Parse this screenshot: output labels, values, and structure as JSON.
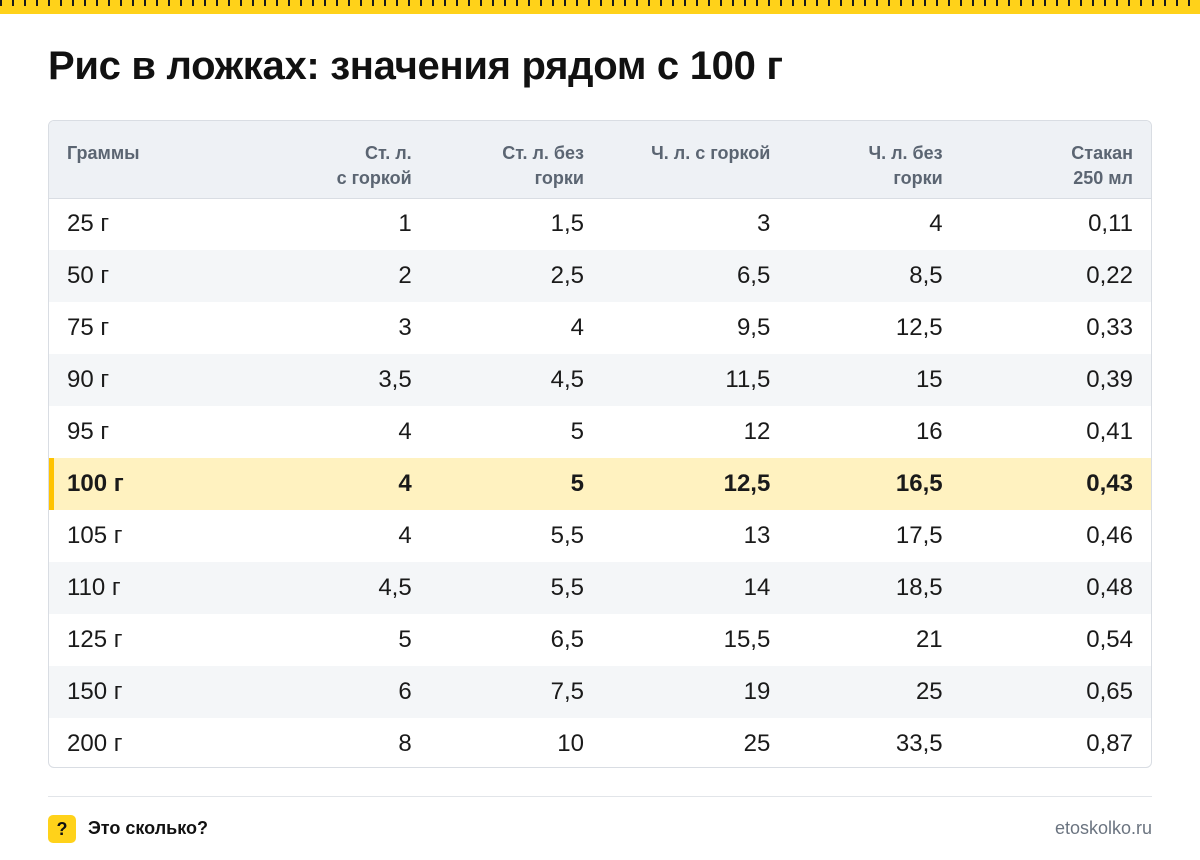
{
  "title": "Рис в ложках: значения рядом с 100 г",
  "table": {
    "headers": [
      {
        "line1": "Граммы",
        "line2": ""
      },
      {
        "line1": "Ст. л.",
        "line2": "с горкой"
      },
      {
        "line1": "Ст. л. без",
        "line2": "горки"
      },
      {
        "line1": "Ч. л. с горкой",
        "line2": ""
      },
      {
        "line1": "Ч. л. без",
        "line2": "горки"
      },
      {
        "line1": "Стакан",
        "line2": "250 мл"
      }
    ],
    "rows": [
      [
        "25 г",
        "1",
        "1,5",
        "3",
        "4",
        "0,11"
      ],
      [
        "50 г",
        "2",
        "2,5",
        "6,5",
        "8,5",
        "0,22"
      ],
      [
        "75 г",
        "3",
        "4",
        "9,5",
        "12,5",
        "0,33"
      ],
      [
        "90 г",
        "3,5",
        "4,5",
        "11,5",
        "15",
        "0,39"
      ],
      [
        "95 г",
        "4",
        "5",
        "12",
        "16",
        "0,41"
      ],
      [
        "100 г",
        "4",
        "5",
        "12,5",
        "16,5",
        "0,43"
      ],
      [
        "105 г",
        "4",
        "5,5",
        "13",
        "17,5",
        "0,46"
      ],
      [
        "110 г",
        "4,5",
        "5,5",
        "14",
        "18,5",
        "0,48"
      ],
      [
        "125 г",
        "5",
        "6,5",
        "15,5",
        "21",
        "0,54"
      ],
      [
        "150 г",
        "6",
        "7,5",
        "19",
        "25",
        "0,65"
      ],
      [
        "200 г",
        "8",
        "10",
        "25",
        "33,5",
        "0,87"
      ]
    ],
    "highlight_row_index": 5
  },
  "footer": {
    "badge_icon": "question-badge-icon",
    "badge_glyph": "?",
    "brand": "Это сколько?",
    "site": "etoskolko.ru"
  },
  "colors": {
    "accent": "#ffd21a",
    "highlight_row": "#fff2c0",
    "header_bg": "#eef1f5"
  }
}
